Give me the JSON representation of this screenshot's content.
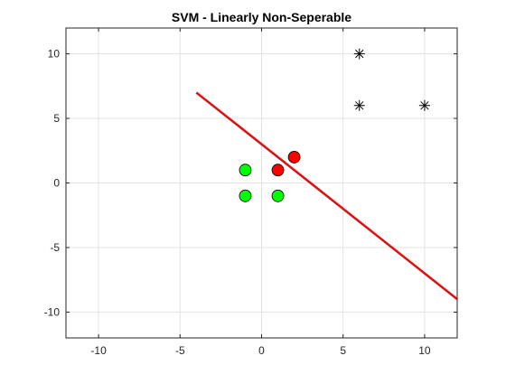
{
  "chart_data": {
    "type": "scatter",
    "title": "SVM - Linearly Non-Seperable",
    "xlabel": "",
    "ylabel": "",
    "xlim": [
      -12,
      12
    ],
    "ylim": [
      -12,
      12
    ],
    "xticks": [
      -10,
      -5,
      0,
      5,
      10
    ],
    "yticks": [
      -10,
      -5,
      0,
      5,
      10
    ],
    "x_tick_labels": [
      "-10",
      "-5",
      "0",
      "5",
      "10"
    ],
    "y_tick_labels": [
      "-10",
      "-5",
      "0",
      "5",
      "10"
    ],
    "grid": true,
    "legend": "none",
    "series": [
      {
        "marker": "circle",
        "color": "#00ff00",
        "points": [
          {
            "x": -1,
            "y": 1
          },
          {
            "x": -1,
            "y": -1
          },
          {
            "x": 1,
            "y": -1
          }
        ]
      },
      {
        "marker": "circle",
        "color": "#ff0000",
        "points": [
          {
            "x": 1,
            "y": 1
          },
          {
            "x": 2,
            "y": 2
          }
        ]
      },
      {
        "marker": "asterisk",
        "color": "#000000",
        "points": [
          {
            "x": 6,
            "y": 10
          },
          {
            "x": 6,
            "y": 6
          },
          {
            "x": 10,
            "y": 6
          }
        ]
      }
    ],
    "lines": [
      {
        "color": "#dd1111",
        "points": [
          {
            "x": -4,
            "y": 7
          },
          {
            "x": 12,
            "y": -9
          }
        ]
      }
    ]
  }
}
